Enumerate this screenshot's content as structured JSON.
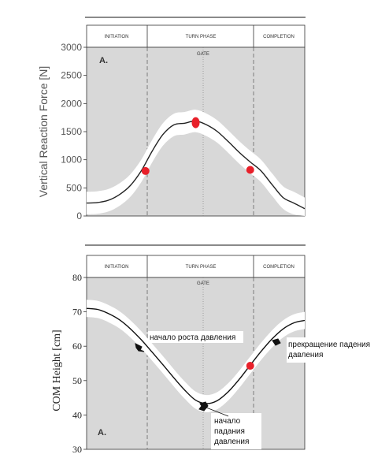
{
  "chart_data": [
    {
      "type": "line",
      "panel_label": "A.",
      "ylabel": "Vertical Reaction Force  [N]",
      "ylim": [
        0,
        3000
      ],
      "yticks": [
        0,
        500,
        1000,
        1500,
        2000,
        2500,
        3000
      ],
      "grid": false,
      "phases": [
        "INITIATION",
        "TURN PHASE",
        "COMPLETION"
      ],
      "gate_label": "GATE",
      "series": [
        {
          "x": [
            0,
            5,
            10,
            15,
            20,
            25,
            30,
            35,
            40,
            45,
            50,
            55,
            60,
            65,
            70,
            75,
            80,
            85,
            90,
            95,
            100
          ],
          "values": [
            230,
            240,
            280,
            380,
            540,
            800,
            1150,
            1450,
            1620,
            1650,
            1690,
            1620,
            1500,
            1320,
            1130,
            960,
            800,
            560,
            330,
            230,
            130
          ],
          "band": 200
        }
      ],
      "markers": [
        {
          "x": 27,
          "y": 800
        },
        {
          "x": 50,
          "y": 1660
        },
        {
          "x": 75,
          "y": 820
        }
      ]
    },
    {
      "type": "line",
      "panel_label": "A.",
      "ylabel": "COM Height [cm]",
      "ylim": [
        30,
        80
      ],
      "yticks": [
        30,
        40,
        50,
        60,
        70,
        80
      ],
      "grid": false,
      "phases": [
        "INITIATION",
        "TURN PHASE",
        "COMPLETION"
      ],
      "gate_label": "GATE",
      "series": [
        {
          "x": [
            0,
            5,
            10,
            15,
            20,
            25,
            30,
            35,
            40,
            45,
            50,
            55,
            60,
            65,
            70,
            75,
            80,
            85,
            90,
            95,
            100
          ],
          "values": [
            71,
            70.7,
            69.5,
            67.7,
            65.1,
            61.9,
            58.3,
            54.6,
            50.8,
            47.2,
            44.3,
            43.3,
            44.2,
            46.8,
            50.4,
            54.5,
            58.5,
            62.1,
            65.0,
            66.8,
            67.5
          ],
          "band": 2.5
        }
      ],
      "markers": [
        {
          "x": 75,
          "y": 54.3
        }
      ],
      "annotations": [
        {
          "text": "начало роста давления"
        },
        {
          "text": "прекращение падения давления"
        },
        {
          "text": "начало падания давления"
        }
      ]
    }
  ]
}
